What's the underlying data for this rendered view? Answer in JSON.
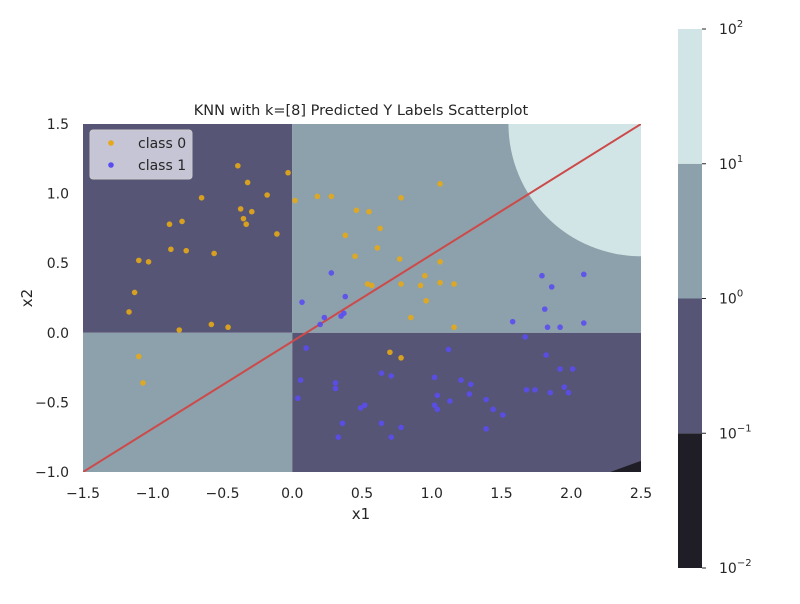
{
  "chart_data": {
    "type": "scatter",
    "title": "KNN with k=[8] Predicted Y Labels Scatterplot",
    "xlabel": "x1",
    "ylabel": "x2",
    "xlim": [
      -1.5,
      2.5
    ],
    "ylim": [
      -1.0,
      1.5
    ],
    "x_ticks": [
      "−1.5",
      "−1.0",
      "−0.5",
      "0.0",
      "0.5",
      "1.0",
      "1.5",
      "2.0",
      "2.5"
    ],
    "y_ticks": [
      "−1.0",
      "−0.5",
      "0.0",
      "0.5",
      "1.0",
      "1.5"
    ],
    "grid": false,
    "legend_position": "top-left",
    "background_regions": [
      {
        "x": [
          -1.5,
          0.0
        ],
        "y": [
          0.0,
          1.5
        ],
        "level": 0.5,
        "color": "#565575"
      },
      {
        "x": [
          0.0,
          2.5
        ],
        "y": [
          0.0,
          1.5
        ],
        "level": 5,
        "color": "#8ca1ab"
      },
      {
        "x": [
          -1.5,
          0.0
        ],
        "y": [
          -1.0,
          0.0
        ],
        "level": 5,
        "color": "#8ca1ab"
      },
      {
        "x": [
          0.0,
          2.5
        ],
        "y": [
          -1.0,
          0.0
        ],
        "level": 0.5,
        "color": "#565575"
      }
    ],
    "top_right_contour": {
      "center": [
        2.5,
        1.5
      ],
      "radius": 0.95,
      "level": 50,
      "color": "#d2e5e6"
    },
    "bottom_right_sliver": {
      "points": [
        [
          2.28,
          -1.0
        ],
        [
          2.5,
          -0.92
        ],
        [
          2.5,
          -1.0
        ]
      ],
      "level": 0.05,
      "color": "#1f1e26"
    },
    "line": {
      "color": "#cc4a4a",
      "points": [
        [
          -1.5,
          -1.0
        ],
        [
          2.5,
          1.5
        ]
      ]
    },
    "series": [
      {
        "name": "class 0",
        "color": "#e6a817",
        "points": [
          [
            -0.39,
            1.2
          ],
          [
            -0.32,
            1.08
          ],
          [
            -0.18,
            0.99
          ],
          [
            -0.65,
            0.97
          ],
          [
            -0.37,
            0.89
          ],
          [
            -0.29,
            0.87
          ],
          [
            -0.79,
            0.8
          ],
          [
            -0.88,
            0.78
          ],
          [
            -0.35,
            0.82
          ],
          [
            -0.33,
            0.78
          ],
          [
            -0.11,
            0.71
          ],
          [
            -0.87,
            0.6
          ],
          [
            -0.76,
            0.59
          ],
          [
            -0.56,
            0.57
          ],
          [
            -1.1,
            0.52
          ],
          [
            -1.03,
            0.51
          ],
          [
            -1.13,
            0.29
          ],
          [
            -1.17,
            0.15
          ],
          [
            -0.58,
            0.06
          ],
          [
            -0.46,
            0.04
          ],
          [
            -0.81,
            0.02
          ],
          [
            -1.1,
            -0.17
          ],
          [
            -1.07,
            -0.36
          ],
          [
            -0.03,
            1.15
          ],
          [
            0.02,
            0.95
          ],
          [
            0.18,
            0.98
          ],
          [
            0.28,
            0.98
          ],
          [
            0.46,
            0.88
          ],
          [
            0.55,
            0.87
          ],
          [
            0.63,
            0.75
          ],
          [
            0.78,
            0.97
          ],
          [
            0.38,
            0.7
          ],
          [
            0.61,
            0.61
          ],
          [
            0.45,
            0.55
          ],
          [
            0.77,
            0.53
          ],
          [
            0.54,
            0.35
          ],
          [
            0.57,
            0.34
          ],
          [
            0.78,
            0.35
          ],
          [
            0.92,
            0.34
          ],
          [
            0.95,
            0.41
          ],
          [
            0.96,
            0.23
          ],
          [
            0.85,
            0.11
          ],
          [
            1.06,
            0.51
          ],
          [
            1.06,
            0.36
          ],
          [
            1.16,
            0.35
          ],
          [
            1.06,
            1.07
          ],
          [
            1.16,
            0.04
          ],
          [
            0.7,
            -0.14
          ],
          [
            0.78,
            -0.18
          ]
        ]
      },
      {
        "name": "class 1",
        "color": "#5a4cf0",
        "points": [
          [
            0.28,
            0.43
          ],
          [
            0.38,
            0.26
          ],
          [
            0.07,
            0.22
          ],
          [
            0.23,
            0.11
          ],
          [
            0.35,
            0.12
          ],
          [
            0.37,
            0.14
          ],
          [
            0.2,
            0.06
          ],
          [
            0.1,
            -0.11
          ],
          [
            1.12,
            -0.12
          ],
          [
            1.79,
            0.41
          ],
          [
            1.86,
            0.33
          ],
          [
            2.09,
            0.42
          ],
          [
            1.81,
            0.17
          ],
          [
            1.58,
            0.08
          ],
          [
            1.83,
            0.04
          ],
          [
            1.92,
            0.04
          ],
          [
            2.09,
            0.07
          ],
          [
            1.67,
            -0.03
          ],
          [
            1.82,
            -0.16
          ],
          [
            1.92,
            -0.26
          ],
          [
            2.01,
            -0.26
          ],
          [
            1.95,
            -0.39
          ],
          [
            1.98,
            -0.43
          ],
          [
            1.68,
            -0.41
          ],
          [
            1.74,
            -0.41
          ],
          [
            1.85,
            -0.43
          ],
          [
            1.28,
            -0.37
          ],
          [
            1.27,
            -0.44
          ],
          [
            1.21,
            -0.34
          ],
          [
            1.44,
            -0.55
          ],
          [
            1.51,
            -0.59
          ],
          [
            1.39,
            -0.48
          ],
          [
            1.39,
            -0.69
          ],
          [
            1.13,
            -0.49
          ],
          [
            1.04,
            -0.45
          ],
          [
            1.02,
            -0.32
          ],
          [
            1.02,
            -0.52
          ],
          [
            1.04,
            -0.55
          ],
          [
            0.06,
            -0.34
          ],
          [
            0.04,
            -0.47
          ],
          [
            0.31,
            -0.36
          ],
          [
            0.31,
            -0.4
          ],
          [
            0.52,
            -0.52
          ],
          [
            0.49,
            -0.54
          ],
          [
            0.36,
            -0.65
          ],
          [
            0.33,
            -0.75
          ],
          [
            0.64,
            -0.29
          ],
          [
            0.71,
            -0.31
          ],
          [
            0.64,
            -0.65
          ],
          [
            0.71,
            -0.75
          ],
          [
            0.78,
            -0.68
          ]
        ]
      }
    ],
    "colorbar": {
      "scale": "log",
      "range": [
        0.01,
        100
      ],
      "levels": [
        {
          "from": 0.01,
          "to": 0.1,
          "color": "#1f1e26"
        },
        {
          "from": 0.1,
          "to": 1,
          "color": "#565575"
        },
        {
          "from": 1,
          "to": 10,
          "color": "#8ca1ab"
        },
        {
          "from": 10,
          "to": 100,
          "color": "#d2e5e6"
        }
      ],
      "ticks": [
        {
          "value": 100,
          "base": "10",
          "exp": "2"
        },
        {
          "value": 10,
          "base": "10",
          "exp": "1"
        },
        {
          "value": 1,
          "base": "10",
          "exp": "0"
        },
        {
          "value": 0.1,
          "base": "10",
          "exp": "−1"
        },
        {
          "value": 0.01,
          "base": "10",
          "exp": "−2"
        }
      ]
    }
  }
}
